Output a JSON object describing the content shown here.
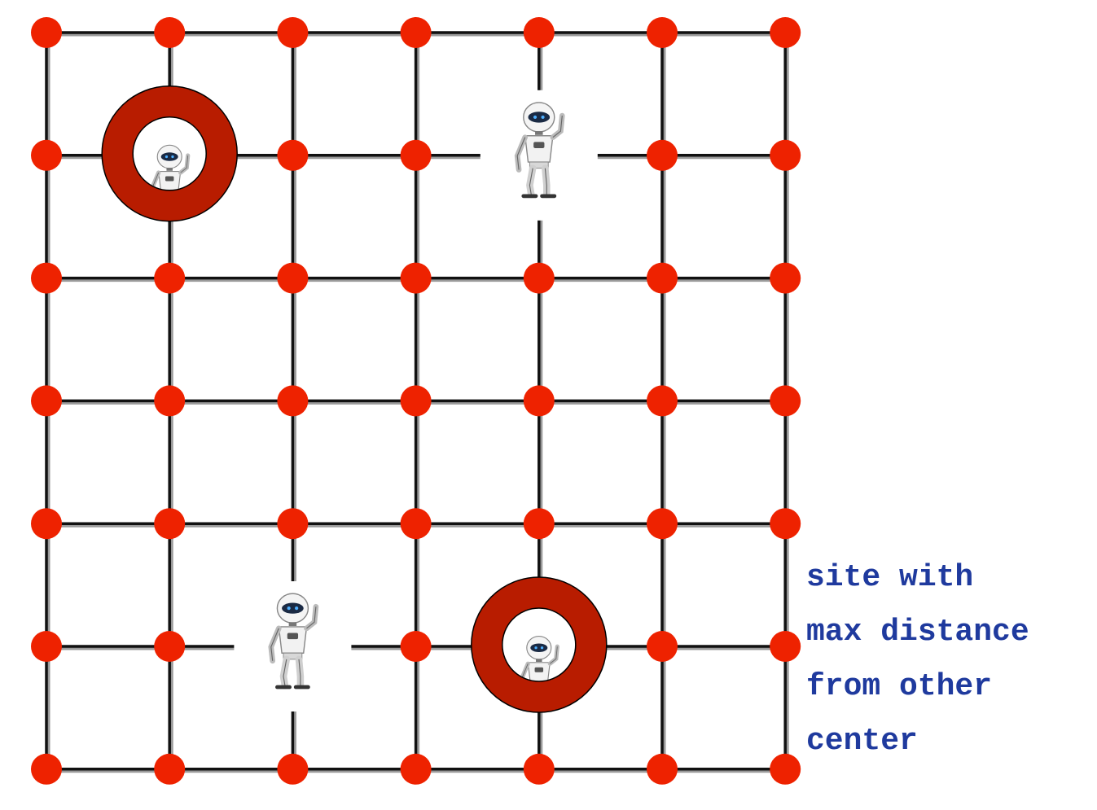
{
  "grid": {
    "columns": 7,
    "rows": 7,
    "node_color": "#ee2200",
    "edge_color": "#111111",
    "edge_shadow_color": "#9a9a9a"
  },
  "robots": [
    {
      "name": "robot-1",
      "col": 1,
      "row": 1,
      "highlighted": true
    },
    {
      "name": "robot-2",
      "col": 4,
      "row": 1,
      "highlighted": false
    },
    {
      "name": "robot-3",
      "col": 2,
      "row": 5,
      "highlighted": false
    },
    {
      "name": "robot-4",
      "col": 4,
      "row": 5,
      "highlighted": true
    }
  ],
  "ring_color": "#b81c00",
  "icons": {
    "robot": "robot-icon",
    "ring": "ring-marker-icon"
  },
  "caption": {
    "line1": "site with",
    "line2": "max distance",
    "line3": "from other",
    "line4": "center",
    "color": "#1f3a9e"
  }
}
